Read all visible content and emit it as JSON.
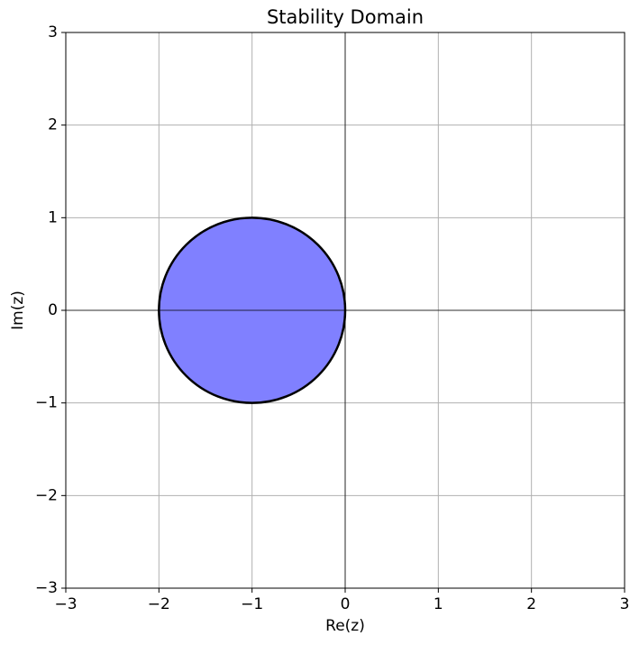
{
  "chart_data": {
    "type": "circle",
    "title": "Stability Domain",
    "x_label": "Re(z)",
    "y_label": "Im(z)",
    "center": [
      -1,
      0
    ],
    "radius": 1,
    "color": "#8080ff",
    "edgecolor": "#000000",
    "xlim": [
      -3,
      3
    ],
    "ylim": [
      -3,
      3
    ],
    "xticks": [
      {
        "value": -3,
        "label": "−3"
      },
      {
        "value": -2,
        "label": "−2"
      },
      {
        "value": -1,
        "label": "−1"
      },
      0,
      1,
      2,
      3
    ],
    "yticks": [
      {
        "value": -3,
        "label": "−3"
      },
      {
        "value": -2,
        "label": "−2"
      },
      {
        "value": -1,
        "label": "−1"
      },
      0,
      1,
      2,
      3
    ],
    "grid": true,
    "zero_lines": true
  }
}
